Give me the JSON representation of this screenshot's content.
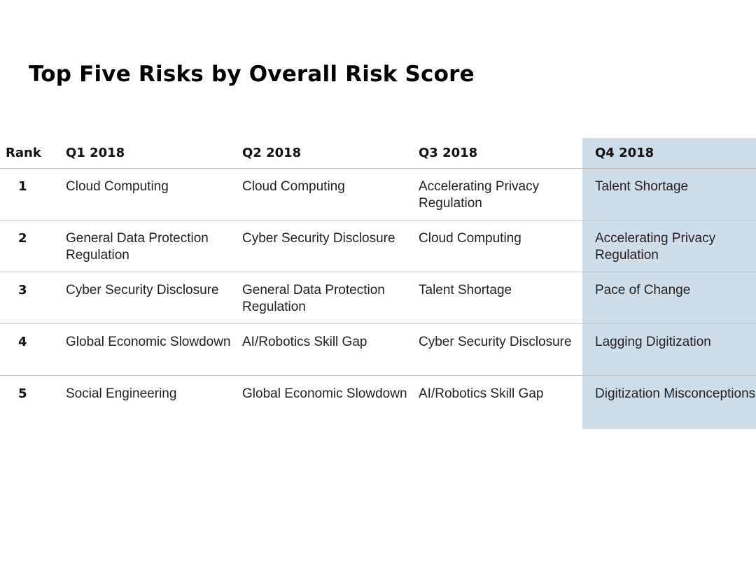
{
  "title": "Top Five Risks by Overall Risk Score",
  "table": {
    "headers": [
      "Rank",
      "Q1 2018",
      "Q2 2018",
      "Q3 2018",
      "Q4 2018"
    ],
    "rows": [
      {
        "rank": "1",
        "cells": [
          "Cloud Computing",
          "Cloud Computing",
          "Accelerating Privacy Regulation",
          "Talent Shortage"
        ]
      },
      {
        "rank": "2",
        "cells": [
          "General Data Protection Regulation",
          "Cyber Security Disclosure",
          "Cloud Computing",
          "Accelerating Privacy Regulation"
        ]
      },
      {
        "rank": "3",
        "cells": [
          "Cyber Security Disclosure",
          "General Data Protection Regulation",
          "Talent Shortage",
          "Pace of Change"
        ]
      },
      {
        "rank": "4",
        "cells": [
          "Global Economic Slowdown",
          "AI/Robotics Skill Gap",
          "Cyber Security Disclosure",
          "Lagging Digitization"
        ]
      },
      {
        "rank": "5",
        "cells": [
          "Social Engineering",
          "Global Economic Slowdown",
          "AI/Robotics Skill Gap",
          "Digitization Misconceptions"
        ]
      }
    ]
  },
  "colors": {
    "highlight_column": "#cfdde8",
    "row_divider": "#c4c4c4"
  }
}
